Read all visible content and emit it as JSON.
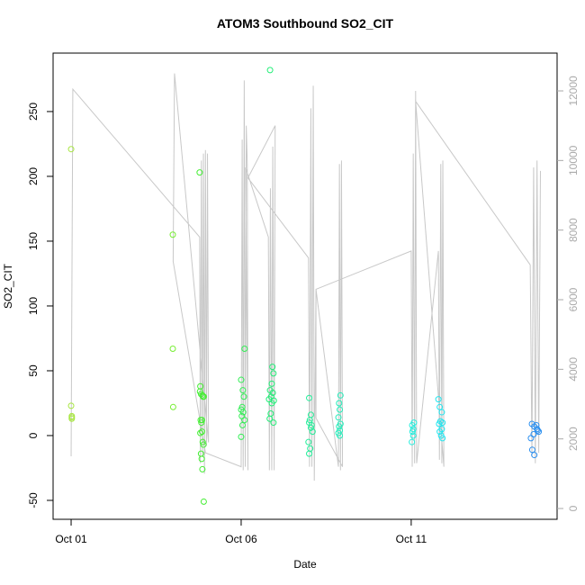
{
  "chart_data": {
    "type": "scatter",
    "title": "ATOM3 Southbound SO2_CIT",
    "x_label": "Date",
    "y_label": "SO2_CIT",
    "xlim": [
      0.47,
      15.29
    ],
    "xticks": [
      {
        "value": 1,
        "label": "Oct 01"
      },
      {
        "value": 6,
        "label": "Oct 06"
      },
      {
        "value": 11,
        "label": "Oct 11"
      }
    ],
    "ylim": [
      -64.6,
      295.1
    ],
    "yticks": [
      -50,
      0,
      50,
      100,
      150,
      200,
      250
    ],
    "y2lim": [
      -310,
      13086
    ],
    "y2ticks": [
      0,
      2000,
      4000,
      6000,
      8000,
      10000,
      12000
    ],
    "series": [
      {
        "type": "line",
        "axis": "y2",
        "color": "#c8c8c8",
        "x": [
          1.0,
          1.05,
          4.78,
          4.8,
          4.83,
          4.86,
          4.89,
          4.92,
          4.95,
          4.98,
          5.01,
          5.04,
          4.04,
          4.0,
          4.95,
          6.0,
          6.03,
          6.06,
          6.09,
          6.12,
          6.15,
          6.18,
          6.2,
          6.13,
          6.8,
          6.83,
          6.86,
          6.9,
          6.93,
          6.97,
          7.0,
          6.2,
          7.98,
          8.01,
          8.05,
          8.08,
          8.12,
          8.15,
          8.2,
          8.86,
          8.89,
          8.92,
          8.95,
          8.98,
          8.2,
          8.2,
          11.0,
          11.03,
          11.06,
          11.1,
          11.13,
          11.16,
          11.8,
          11.83,
          11.87,
          11.9,
          11.93,
          11.96,
          11.13,
          14.5,
          14.55,
          14.6,
          14.65,
          14.7,
          14.75,
          14.8
        ],
        "values": [
          1500,
          12050,
          7800,
          1300,
          10000,
          1500,
          10200,
          1000,
          10300,
          1800,
          10200,
          1900,
          12500,
          7100,
          1600,
          1200,
          10600,
          1100,
          12300,
          1200,
          11000,
          9900,
          1100,
          9800,
          7800,
          1100,
          9200,
          1100,
          10400,
          1100,
          11000,
          9500,
          7200,
          1200,
          11500,
          1200,
          12150,
          800,
          6300,
          1200,
          9900,
          1100,
          10000,
          1200,
          2600,
          6300,
          7400,
          1200,
          10200,
          1300,
          12000,
          1300,
          7400,
          1400,
          9900,
          1300,
          10000,
          1200,
          11700,
          7000,
          1500,
          9800,
          1300,
          10000,
          1600,
          9700
        ]
      },
      {
        "color": "#a8e642",
        "x": [
          1.0,
          1.0,
          1.02,
          1.02,
          1.02
        ],
        "values": [
          221,
          23,
          15,
          13,
          14
        ]
      },
      {
        "color": "#77ee33",
        "x": [
          3.99,
          3.99,
          4.0
        ],
        "values": [
          155,
          67,
          22
        ]
      },
      {
        "color": "#44ee33",
        "x": [
          4.78,
          4.8,
          4.79,
          4.82,
          4.86,
          4.88,
          4.81,
          4.83,
          4.85,
          4.8,
          4.87,
          4.89,
          4.82,
          4.84,
          4.86,
          4.9,
          4.9,
          4.85
        ],
        "values": [
          203,
          38,
          34,
          32,
          31,
          30,
          12,
          10,
          3,
          2,
          -5,
          -7,
          -14,
          -18,
          -26,
          -51,
          30,
          12
        ]
      },
      {
        "color": "#33ee55",
        "x": [
          6.1,
          6.0,
          6.05,
          6.08,
          6.03,
          6.0,
          6.06,
          6.02,
          6.1,
          6.04,
          6.0
        ],
        "values": [
          67,
          43,
          35,
          30,
          22,
          20,
          18,
          15,
          12,
          8,
          -1
        ]
      },
      {
        "color": "#22ee77",
        "x": [
          6.85,
          6.92,
          6.95,
          6.9,
          6.85,
          6.93,
          6.88,
          6.82,
          6.96,
          6.9,
          6.87,
          6.84,
          6.95
        ],
        "values": [
          282,
          53,
          48,
          40,
          35,
          33,
          30,
          28,
          27,
          25,
          17,
          13,
          10
        ]
      },
      {
        "color": "#22ee99",
        "x": [
          8.0,
          8.05,
          8.02,
          8.0,
          8.07,
          8.1,
          7.98,
          8.03,
          8.0,
          8.05
        ],
        "values": [
          29,
          16,
          12,
          10,
          8,
          3,
          -5,
          -10,
          -14,
          6
        ]
      },
      {
        "color": "#22eebb",
        "x": [
          8.92,
          8.88,
          8.9,
          8.86,
          8.92,
          8.88,
          8.9,
          8.86,
          8.9
        ],
        "values": [
          31,
          25,
          20,
          14,
          9,
          7,
          4,
          2,
          0
        ]
      },
      {
        "color": "#22eedd",
        "x": [
          11.08,
          11.03,
          11.06,
          11.04,
          11.06,
          11.02
        ],
        "values": [
          10,
          8,
          5,
          3,
          0,
          -5
        ]
      },
      {
        "color": "#22e6f0",
        "x": [
          11.8,
          11.84,
          11.9,
          11.86,
          11.92,
          11.82,
          11.9,
          11.84,
          11.88,
          11.92
        ],
        "values": [
          28,
          22,
          18,
          11,
          10,
          9,
          5,
          3,
          0,
          -2
        ]
      },
      {
        "color": "#2a8ff0",
        "x": [
          14.55,
          14.62,
          14.7,
          14.75,
          14.6,
          14.52,
          14.56,
          14.62,
          14.68,
          14.72
        ],
        "values": [
          9,
          7,
          5,
          3,
          1,
          -2,
          -11,
          -15,
          8,
          4
        ]
      }
    ]
  }
}
